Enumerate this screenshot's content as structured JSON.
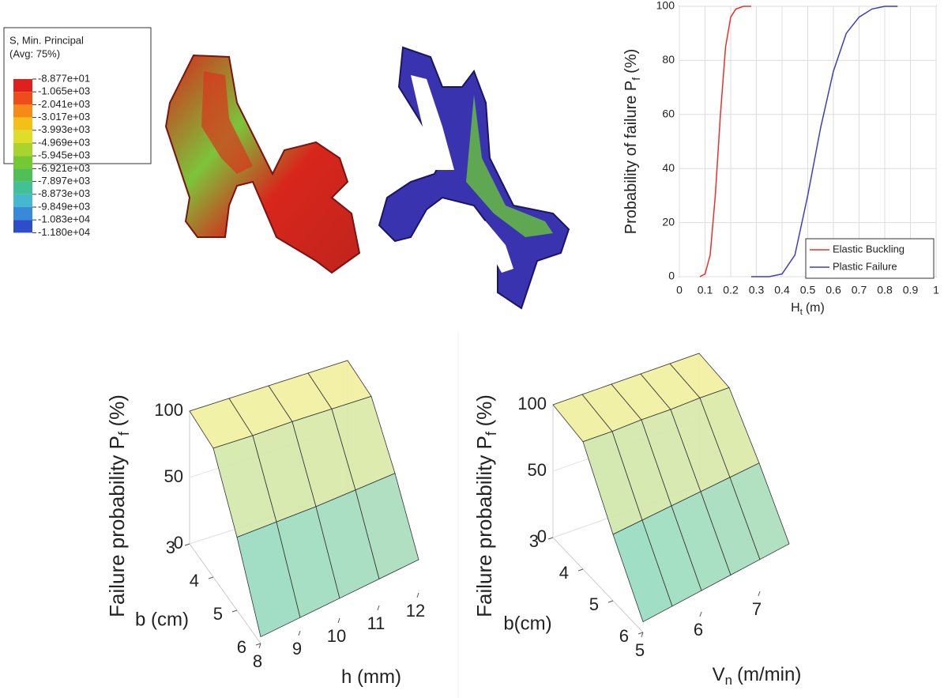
{
  "chart_data": [
    {
      "type": "colorbar",
      "title": "S, Min. Principal",
      "subtitle": "(Avg: 75%)",
      "values": [
        -88.77,
        -1065,
        -2041,
        -3017,
        -3993,
        -4969,
        -5945,
        -6921,
        -7897,
        -8873,
        -9849,
        -10830,
        -11800
      ],
      "value_labels": [
        "-8.877e+01",
        "-1.065e+03",
        "-2.041e+03",
        "-3.017e+03",
        "-3.993e+03",
        "-4.969e+03",
        "-5.945e+03",
        "-6.921e+03",
        "-7.897e+03",
        "-8.873e+03",
        "-9.849e+03",
        "-1.083e+04",
        "-1.180e+04"
      ],
      "colors": [
        "#e0201c",
        "#ee4d1a",
        "#f58a16",
        "#f2c016",
        "#dede2a",
        "#a9d42e",
        "#74c832",
        "#4fbf56",
        "#42c196",
        "#45b8cf",
        "#3889d9",
        "#2c4ec8"
      ]
    },
    {
      "type": "line",
      "xlabel": "H",
      "xlabel_sub": "t",
      "xlabel_unit": "(m)",
      "ylabel": "Probability of failure P",
      "ylabel_sub": "f",
      "ylabel_unit": "(%)",
      "xlim": [
        0,
        1
      ],
      "xticks": [
        0,
        0.1,
        0.2,
        0.3,
        0.4,
        0.5,
        0.6,
        0.7,
        0.8,
        0.9,
        1
      ],
      "ylim": [
        0,
        100
      ],
      "yticks": [
        0,
        20,
        40,
        60,
        80,
        100
      ],
      "grid": true,
      "legend": "lower right",
      "series": [
        {
          "name": "Elastic Buckling",
          "color": "#e8302a",
          "x": [
            0.08,
            0.1,
            0.12,
            0.14,
            0.16,
            0.18,
            0.2,
            0.22,
            0.25,
            0.28
          ],
          "values": [
            0,
            1,
            8,
            30,
            60,
            85,
            96,
            99,
            100,
            100
          ]
        },
        {
          "name": "Plastic Failure",
          "color": "#3a3fc0",
          "x": [
            0.28,
            0.35,
            0.4,
            0.45,
            0.5,
            0.55,
            0.6,
            0.65,
            0.7,
            0.75,
            0.8,
            0.85
          ],
          "values": [
            0,
            0,
            1,
            8,
            30,
            55,
            76,
            90,
            96,
            99,
            100,
            100
          ]
        }
      ]
    },
    {
      "type": "surface",
      "zlabel": "Failure probability P",
      "zlabel_sub": "f",
      "zlabel_unit": "(%)",
      "xlabel": "b (cm)",
      "ylabel": "h (mm)",
      "x": [
        3,
        4,
        5,
        6
      ],
      "y": [
        8,
        9,
        10,
        11,
        12
      ],
      "values": [
        [
          100,
          100,
          100,
          100,
          100
        ],
        [
          97,
          97,
          98,
          98,
          98
        ],
        [
          55,
          57,
          59,
          62,
          65
        ],
        [
          5,
          10,
          15,
          20,
          25
        ]
      ],
      "xlim": [
        3,
        6
      ],
      "xticks": [
        3,
        4,
        5,
        6
      ],
      "ylim": [
        8,
        12
      ],
      "yticks": [
        8,
        9,
        10,
        11,
        12
      ],
      "zlim": [
        0,
        100
      ],
      "zticks": [
        0,
        50,
        100
      ]
    },
    {
      "type": "surface",
      "zlabel": "Failure probability P",
      "zlabel_sub": "f",
      "zlabel_unit": "(%)",
      "xlabel": "b(cm)",
      "ylabel": "V",
      "ylabel_sub": "n",
      "ylabel_unit": "(m/min)",
      "x": [
        3,
        4,
        5,
        6
      ],
      "y": [
        5,
        5.5,
        6,
        6.5,
        7,
        7.5
      ],
      "values": [
        [
          100,
          100,
          100,
          100,
          100,
          100
        ],
        [
          96,
          96,
          97,
          97,
          98,
          98
        ],
        [
          50,
          53,
          56,
          59,
          62,
          65
        ],
        [
          8,
          12,
          16,
          20,
          24,
          28
        ]
      ],
      "xlim": [
        3,
        6
      ],
      "xticks": [
        3,
        4,
        5,
        6
      ],
      "ylim": [
        5,
        7.5
      ],
      "yticks": [
        5,
        6,
        7
      ],
      "zlim": [
        0,
        100
      ],
      "zticks": [
        0,
        50,
        100
      ]
    }
  ]
}
